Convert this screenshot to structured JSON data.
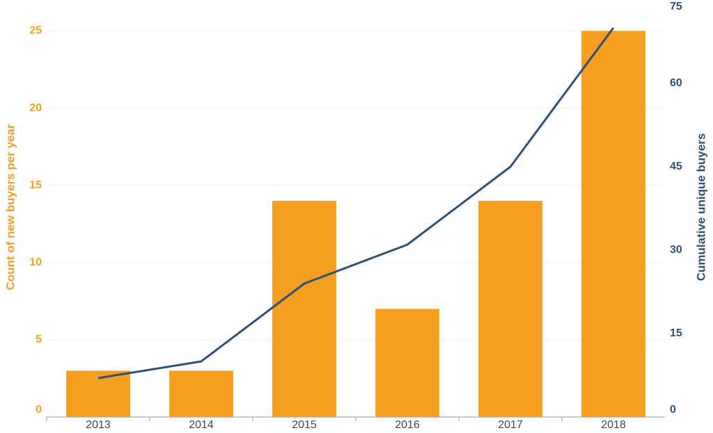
{
  "chart_data": {
    "type": "bar",
    "categories": [
      "2013",
      "2014",
      "2015",
      "2016",
      "2017",
      "2018"
    ],
    "series": [
      {
        "type": "bar",
        "color": "#f59e1f",
        "values": [
          3,
          3,
          14,
          7,
          14,
          25
        ]
      },
      {
        "type": "line",
        "axis": "y2",
        "color": "#2e5079",
        "values": [
          7,
          10,
          24,
          31,
          45,
          70
        ]
      }
    ],
    "y_label": "Count of new buyers per year",
    "y2_label": "Cumulative unique buyers",
    "ylim": [
      0,
      27
    ],
    "yticks": [
      0,
      5,
      10,
      15,
      20,
      25
    ],
    "y2lim": [
      0,
      75
    ],
    "y2ticks": [
      0,
      15,
      30,
      45,
      60,
      75
    ],
    "grid": true
  }
}
